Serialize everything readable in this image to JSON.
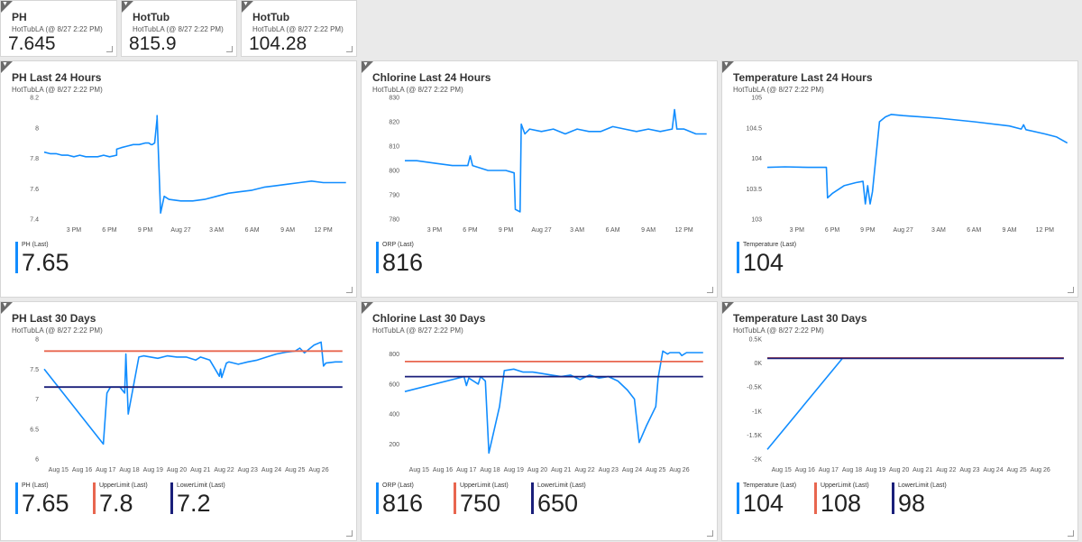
{
  "source": "HotTubLA (@ 8/27 2:22 PM)",
  "colors": {
    "blue": "#118dff",
    "red": "#e8664f",
    "navy": "#1a1f7a"
  },
  "cards": [
    {
      "title": "PH",
      "value": "7.645"
    },
    {
      "title": "HotTub",
      "value": "815.9"
    },
    {
      "title": "HotTub",
      "value": "104.28"
    }
  ],
  "charts": [
    {
      "title": "PH Last 24 Hours",
      "chart_data": {
        "type": "line",
        "x_ticks": [
          "3 PM",
          "6 PM",
          "9 PM",
          "Aug 27",
          "3 AM",
          "6 AM",
          "9 AM",
          "12 PM"
        ],
        "xlim": [
          12.5,
          38
        ],
        "y_ticks": [
          "7.4",
          "7.6",
          "7.8",
          "8",
          "8.2"
        ],
        "ylim": [
          7.4,
          8.2
        ],
        "series": [
          {
            "name": "PH (Last)",
            "color": "blue",
            "x": [
              12.5,
              13.0,
              13.5,
              14.0,
              14.5,
              15.0,
              15.5,
              16.0,
              16.5,
              17.0,
              17.5,
              18.0,
              18.6,
              18.6,
              19.0,
              19.5,
              20.0,
              20.5,
              21.0,
              21.3,
              21.5,
              21.6,
              21.8,
              22.0,
              22.0,
              22.3,
              22.6,
              23,
              24,
              25,
              26,
              27,
              28,
              29,
              30,
              31,
              32,
              33,
              34,
              35,
              36,
              37,
              37.9
            ],
            "y": [
              7.84,
              7.83,
              7.83,
              7.82,
              7.82,
              7.81,
              7.82,
              7.81,
              7.81,
              7.81,
              7.82,
              7.81,
              7.82,
              7.86,
              7.87,
              7.88,
              7.89,
              7.89,
              7.9,
              7.9,
              7.89,
              7.89,
              7.9,
              8.06,
              8.08,
              7.44,
              7.55,
              7.53,
              7.52,
              7.52,
              7.53,
              7.55,
              7.57,
              7.58,
              7.59,
              7.61,
              7.62,
              7.63,
              7.64,
              7.65,
              7.64,
              7.64,
              7.64
            ]
          }
        ]
      },
      "legend": [
        {
          "label": "PH (Last)",
          "value": "7.65",
          "color": "blue"
        }
      ]
    },
    {
      "title": "Chlorine Last 24 Hours",
      "chart_data": {
        "type": "line",
        "x_ticks": [
          "3 PM",
          "6 PM",
          "9 PM",
          "Aug 27",
          "3 AM",
          "6 AM",
          "9 AM",
          "12 PM"
        ],
        "xlim": [
          12.5,
          38
        ],
        "y_ticks": [
          "780",
          "790",
          "800",
          "810",
          "820",
          "830"
        ],
        "ylim": [
          780,
          830
        ],
        "series": [
          {
            "name": "ORP (Last)",
            "color": "blue",
            "x": [
              12.5,
              13.5,
              15,
              16.5,
              17.8,
              18.0,
              18.2,
              19.5,
              21,
              21.7,
              21.8,
              22.2,
              22.3,
              22.6,
              23,
              24,
              25,
              26,
              27,
              28,
              29,
              30,
              31,
              32,
              33,
              34,
              35,
              35.2,
              35.4,
              36,
              37,
              37.9
            ],
            "y": [
              804,
              804,
              803,
              802,
              802,
              806,
              802,
              800,
              800,
              799,
              784,
              783,
              819,
              815,
              817,
              816,
              817,
              815,
              817,
              816,
              816,
              818,
              817,
              816,
              817,
              816,
              817,
              825,
              817,
              817,
              815,
              815
            ]
          }
        ]
      },
      "legend": [
        {
          "label": "ORP (Last)",
          "value": "816",
          "color": "blue"
        }
      ]
    },
    {
      "title": "Temperature Last 24 Hours",
      "chart_data": {
        "type": "line",
        "x_ticks": [
          "3 PM",
          "6 PM",
          "9 PM",
          "Aug 27",
          "3 AM",
          "6 AM",
          "9 AM",
          "12 PM"
        ],
        "xlim": [
          12.5,
          38
        ],
        "y_ticks": [
          "103",
          "103.5",
          "104",
          "104.5",
          "105"
        ],
        "ylim": [
          103,
          105
        ],
        "series": [
          {
            "name": "Temperature (Last)",
            "color": "blue",
            "x": [
              12.5,
              14,
              16,
              17.5,
              17.6,
              18.0,
              19,
              20,
              20.6,
              20.8,
              21.0,
              21.2,
              21.4,
              22,
              22.5,
              23,
              24,
              27,
              30,
              33,
              34,
              34.2,
              34.4,
              36,
              37,
              37.9
            ],
            "y": [
              103.85,
              103.86,
              103.85,
              103.85,
              103.35,
              103.42,
              103.55,
              103.6,
              103.62,
              103.25,
              103.55,
              103.25,
              103.45,
              104.6,
              104.68,
              104.72,
              104.7,
              104.66,
              104.6,
              104.53,
              104.48,
              104.55,
              104.47,
              104.4,
              104.35,
              104.25
            ]
          }
        ]
      },
      "legend": [
        {
          "label": "Temperature (Last)",
          "value": "104",
          "color": "blue"
        }
      ]
    },
    {
      "title": "PH Last 30 Days",
      "chart_data": {
        "type": "line",
        "x_ticks": [
          "Aug 15",
          "Aug 16",
          "Aug 17",
          "Aug 18",
          "Aug 19",
          "Aug 20",
          "Aug 21",
          "Aug 22",
          "Aug 23",
          "Aug 24",
          "Aug 25",
          "Aug 26"
        ],
        "xlim": [
          14.4,
          27.2
        ],
        "y_ticks": [
          "6",
          "6.5",
          "7",
          "7.5",
          "8"
        ],
        "ylim": [
          6,
          8
        ],
        "series": [
          {
            "name": "PH (Last)",
            "color": "blue",
            "x": [
              14.4,
              16.9,
              17.05,
              17.2,
              17.6,
              17.8,
              17.85,
              17.95,
              18.4,
              18.6,
              18.9,
              19.2,
              19.6,
              20,
              20.4,
              20.8,
              21,
              21.4,
              21.8,
              21.85,
              21.9,
              22.1,
              22.2,
              22.6,
              23,
              23.4,
              23.8,
              24.2,
              24.6,
              25,
              25.2,
              25.4,
              25.8,
              26.1,
              26.2,
              26.3,
              26.7,
              27.0
            ],
            "y": [
              7.5,
              6.25,
              7.1,
              7.2,
              7.2,
              7.1,
              7.75,
              6.75,
              7.7,
              7.72,
              7.7,
              7.68,
              7.72,
              7.7,
              7.7,
              7.65,
              7.7,
              7.65,
              7.38,
              7.5,
              7.36,
              7.6,
              7.62,
              7.58,
              7.62,
              7.65,
              7.7,
              7.75,
              7.78,
              7.8,
              7.85,
              7.77,
              7.9,
              7.95,
              7.55,
              7.6,
              7.62,
              7.62
            ]
          },
          {
            "name": "UpperLimit (Last)",
            "color": "red",
            "x": [
              14.4,
              27.0
            ],
            "y": [
              7.8,
              7.8
            ]
          },
          {
            "name": "LowerLimit (Last)",
            "color": "navy",
            "x": [
              14.4,
              27.0
            ],
            "y": [
              7.2,
              7.2
            ]
          }
        ]
      },
      "legend": [
        {
          "label": "PH (Last)",
          "value": "7.65",
          "color": "blue"
        },
        {
          "label": "UpperLimit (Last)",
          "value": "7.8",
          "color": "red"
        },
        {
          "label": "LowerLimit (Last)",
          "value": "7.2",
          "color": "navy"
        }
      ]
    },
    {
      "title": "Chlorine Last 30 Days",
      "chart_data": {
        "type": "line",
        "x_ticks": [
          "Aug 15",
          "Aug 16",
          "Aug 17",
          "Aug 18",
          "Aug 19",
          "Aug 20",
          "Aug 21",
          "Aug 22",
          "Aug 23",
          "Aug 24",
          "Aug 25",
          "Aug 26"
        ],
        "xlim": [
          14.4,
          27.2
        ],
        "y_ticks": [
          "200",
          "400",
          "600",
          "800"
        ],
        "ylim": [
          100,
          900
        ],
        "series": [
          {
            "name": "ORP (Last)",
            "color": "blue",
            "x": [
              14.4,
              16.9,
              17.0,
              17.1,
              17.5,
              17.6,
              17.8,
              17.95,
              18.4,
              18.6,
              19.0,
              19.4,
              19.8,
              20.2,
              20.6,
              21.0,
              21.4,
              21.8,
              22.2,
              22.6,
              23.0,
              23.4,
              23.8,
              24.1,
              24.3,
              24.6,
              25.0,
              25.1,
              25.3,
              25.5,
              25.6,
              26.0,
              26.1,
              26.3,
              26.6,
              27.0
            ],
            "y": [
              550,
              650,
              590,
              640,
              600,
              650,
              620,
              140,
              450,
              690,
              700,
              680,
              680,
              670,
              660,
              650,
              660,
              630,
              660,
              640,
              650,
              620,
              560,
              500,
              210,
              320,
              450,
              640,
              820,
              800,
              810,
              810,
              790,
              810,
              810,
              810
            ]
          },
          {
            "name": "UpperLimit (Last)",
            "color": "red",
            "x": [
              14.4,
              27.0
            ],
            "y": [
              750,
              750
            ]
          },
          {
            "name": "LowerLimit (Last)",
            "color": "navy",
            "x": [
              14.4,
              27.0
            ],
            "y": [
              650,
              650
            ]
          }
        ]
      },
      "legend": [
        {
          "label": "ORP (Last)",
          "value": "816",
          "color": "blue"
        },
        {
          "label": "UpperLimit (Last)",
          "value": "750",
          "color": "red"
        },
        {
          "label": "LowerLimit (Last)",
          "value": "650",
          "color": "navy"
        }
      ]
    },
    {
      "title": "Temperature Last 30 Days",
      "chart_data": {
        "type": "line",
        "x_ticks": [
          "Aug 15",
          "Aug 16",
          "Aug 17",
          "Aug 18",
          "Aug 19",
          "Aug 20",
          "Aug 21",
          "Aug 22",
          "Aug 23",
          "Aug 24",
          "Aug 25",
          "Aug 26"
        ],
        "xlim": [
          14.4,
          27.2
        ],
        "y_ticks": [
          "-2K",
          "-1.5K",
          "-1K",
          "-0.5K",
          "0K",
          "0.5K"
        ],
        "ylim": [
          -2000,
          500
        ],
        "series": [
          {
            "name": "Temperature (Last)",
            "color": "blue",
            "x": [
              14.4,
              17.6,
              27.0
            ],
            "y": [
              -1800,
              104,
              104
            ]
          },
          {
            "name": "UpperLimit (Last)",
            "color": "red",
            "x": [
              14.4,
              27.0
            ],
            "y": [
              108,
              108
            ]
          },
          {
            "name": "LowerLimit (Last)",
            "color": "navy",
            "x": [
              14.4,
              27.0
            ],
            "y": [
              98,
              98
            ]
          }
        ]
      },
      "legend": [
        {
          "label": "Temperature (Last)",
          "value": "104",
          "color": "blue"
        },
        {
          "label": "UpperLimit (Last)",
          "value": "108",
          "color": "red"
        },
        {
          "label": "LowerLimit (Last)",
          "value": "98",
          "color": "navy"
        }
      ]
    }
  ]
}
